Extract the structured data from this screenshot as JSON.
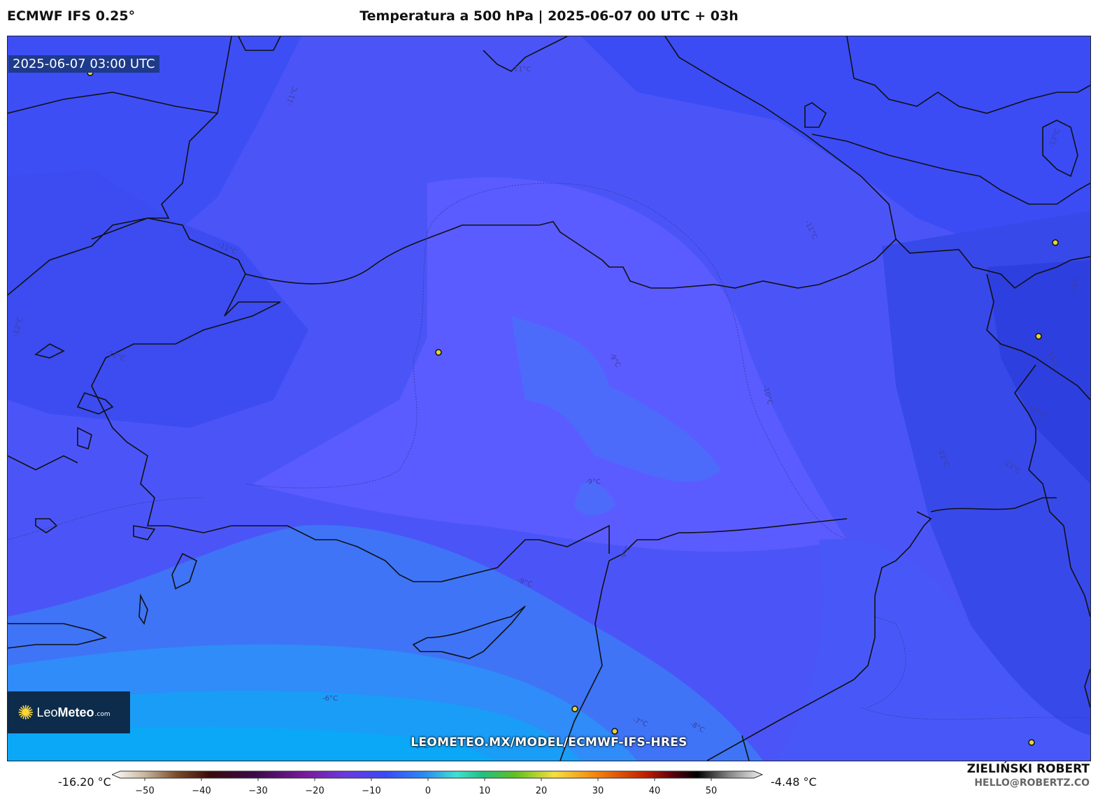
{
  "header": {
    "model": "ECMWF IFS 0.25°",
    "title": "Temperatura a 500 hPa | 2025-06-07 00 UTC + 03h"
  },
  "map": {
    "valid_time": "2025-06-07 03:00 UTC",
    "watermark": "LEOMETEO.MX/MODEL/ECMWF-IFS-HRES",
    "contour_labels": [
      "-11°C",
      "-11°C",
      "-11°C",
      "-12°C",
      "-12°C",
      "-11°C",
      "-9°C",
      "-10°C",
      "-9°C",
      "-9°C",
      "-9°C",
      "-12°C",
      "-13°C",
      "-14°C",
      "-15°C",
      "-14°C",
      "-13°C",
      "-6°C",
      "-7°C",
      "-8°C",
      "-5°C"
    ]
  },
  "logo": {
    "name_light": "Leo",
    "name_bold": "Meteo",
    "suffix": ".com"
  },
  "colorbar": {
    "min_label": "-16.20 °C",
    "max_label": "-4.48 °C",
    "ticks": [
      "−50",
      "−40",
      "−30",
      "−20",
      "−10",
      "0",
      "10",
      "20",
      "30",
      "40",
      "50"
    ]
  },
  "credits": {
    "author": "ZIELIŃSKI ROBERT",
    "email": "HELLO@ROBERTZ.CO"
  },
  "colors": {
    "cold": "#2a3fd8",
    "mid": "#5a5cff",
    "warm": "#00a6f5"
  }
}
